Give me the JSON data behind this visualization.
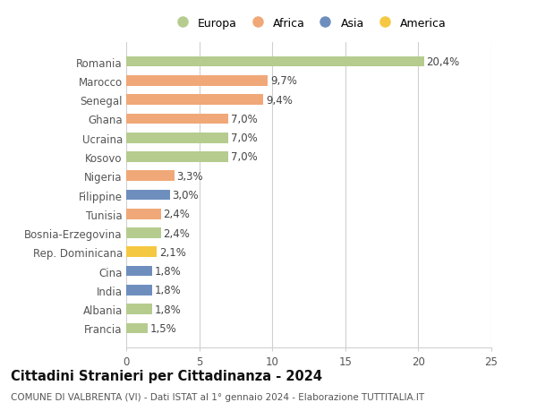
{
  "countries": [
    "Francia",
    "Albania",
    "India",
    "Cina",
    "Rep. Dominicana",
    "Bosnia-Erzegovina",
    "Tunisia",
    "Filippine",
    "Nigeria",
    "Kosovo",
    "Ucraina",
    "Ghana",
    "Senegal",
    "Marocco",
    "Romania"
  ],
  "values": [
    1.5,
    1.8,
    1.8,
    1.8,
    2.1,
    2.4,
    2.4,
    3.0,
    3.3,
    7.0,
    7.0,
    7.0,
    9.4,
    9.7,
    20.4
  ],
  "labels": [
    "1,5%",
    "1,8%",
    "1,8%",
    "1,8%",
    "2,1%",
    "2,4%",
    "2,4%",
    "3,0%",
    "3,3%",
    "7,0%",
    "7,0%",
    "7,0%",
    "9,4%",
    "9,7%",
    "20,4%"
  ],
  "continents": [
    "Europa",
    "Europa",
    "Asia",
    "Asia",
    "America",
    "Europa",
    "Africa",
    "Asia",
    "Africa",
    "Europa",
    "Europa",
    "Africa",
    "Africa",
    "Africa",
    "Europa"
  ],
  "colors": {
    "Europa": "#b5cc8e",
    "Africa": "#f0a878",
    "Asia": "#6e8fbe",
    "America": "#f5c842"
  },
  "legend_order": [
    "Europa",
    "Africa",
    "Asia",
    "America"
  ],
  "xlim": [
    0,
    25
  ],
  "xticks": [
    0,
    5,
    10,
    15,
    20,
    25
  ],
  "title": "Cittadini Stranieri per Cittadinanza - 2024",
  "subtitle": "COMUNE DI VALBRENTA (VI) - Dati ISTAT al 1° gennaio 2024 - Elaborazione TUTTITALIA.IT",
  "background_color": "#ffffff",
  "grid_color": "#d0d0d0",
  "bar_height": 0.55,
  "label_fontsize": 8.5,
  "tick_fontsize": 8.5,
  "title_fontsize": 10.5,
  "subtitle_fontsize": 7.5
}
